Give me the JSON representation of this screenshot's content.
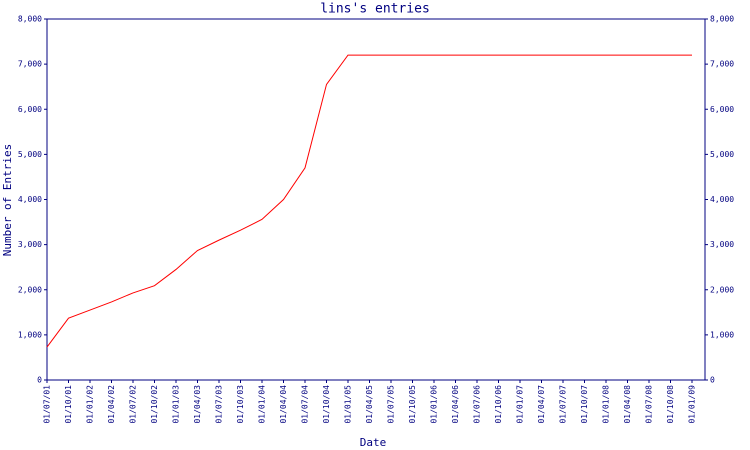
{
  "chart_data": {
    "type": "line",
    "title": "lins's entries",
    "x_label": "Date",
    "y_label": "Number of Entries",
    "x": [
      "01/07/01",
      "01/10/01",
      "01/01/02",
      "01/04/02",
      "01/07/02",
      "01/10/02",
      "01/01/03",
      "01/04/03",
      "01/07/03",
      "01/10/03",
      "01/01/04",
      "01/04/04",
      "01/07/04",
      "01/10/04",
      "01/01/05",
      "01/04/05",
      "01/07/05",
      "01/10/05",
      "01/01/06",
      "01/04/06",
      "01/07/06",
      "01/10/06",
      "01/01/07",
      "01/04/07",
      "01/07/07",
      "01/10/07",
      "01/01/08",
      "01/04/08",
      "01/07/08",
      "01/10/08",
      "01/01/09"
    ],
    "series": [
      {
        "name": "lins",
        "color": "#ff0000",
        "values": [
          730,
          1370,
          1550,
          1730,
          1930,
          2090,
          2450,
          2870,
          3100,
          3320,
          3560,
          4000,
          4700,
          6550,
          7200,
          7200,
          7200,
          7200,
          7200,
          7200,
          7200,
          7200,
          7200,
          7200,
          7200,
          7200,
          7200,
          7200,
          7200,
          7200,
          7200
        ]
      }
    ],
    "xticks": [
      "01/07/01",
      "01/10/01",
      "01/01/02",
      "01/04/02",
      "01/07/02",
      "01/10/02",
      "01/01/03",
      "01/04/03",
      "01/07/03",
      "01/10/03",
      "01/01/04",
      "01/04/04",
      "01/07/04",
      "01/10/04",
      "01/01/05",
      "01/04/05",
      "01/07/05",
      "01/10/05",
      "01/01/06",
      "01/04/06",
      "01/07/06",
      "01/10/06",
      "01/01/07",
      "01/04/07",
      "01/07/07",
      "01/10/07",
      "01/01/08",
      "01/04/08",
      "01/07/08",
      "01/10/08",
      "01/01/09"
    ],
    "ylim": [
      0,
      8000
    ],
    "yticks": [
      0,
      {
        "value": 1000,
        "label": "1,000"
      },
      {
        "value": 2000,
        "label": "2,000"
      },
      {
        "value": 3000,
        "label": "3,000"
      },
      {
        "value": 4000,
        "label": "4,000"
      },
      {
        "value": 5000,
        "label": "5,000"
      },
      {
        "value": 6000,
        "label": "6,000"
      },
      {
        "value": 7000,
        "label": "7,000"
      },
      {
        "value": 8000,
        "label": "8,000"
      }
    ],
    "axis_color": "#000080"
  }
}
